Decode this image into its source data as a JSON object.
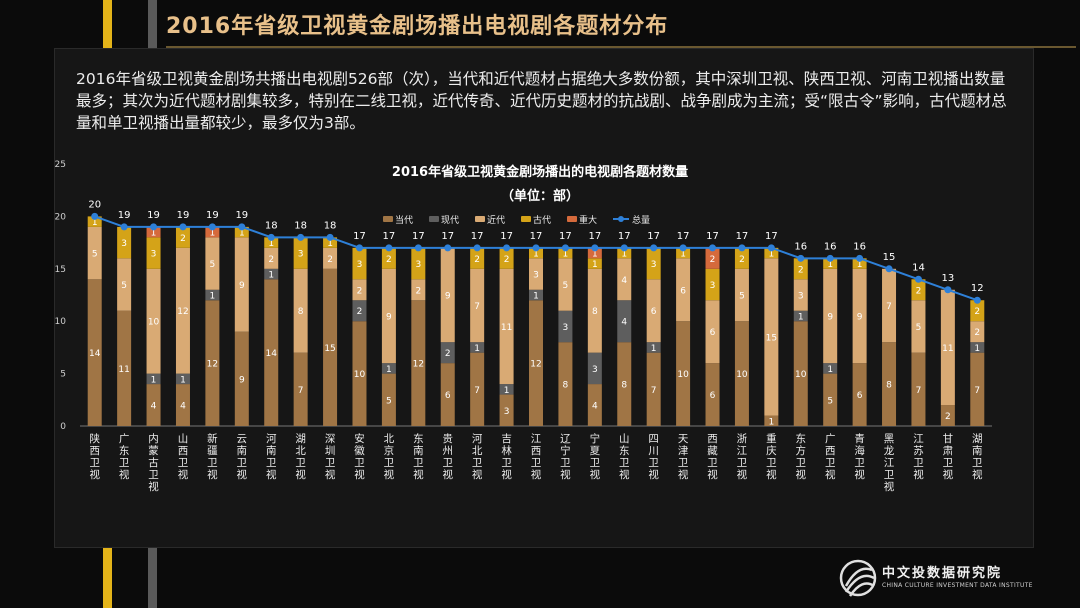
{
  "page": {
    "title": "2016年省级卫视黄金剧场播出电视剧各题材分布",
    "description": "2016年省级卫视黄金剧场共播出电视剧526部（次），当代和近代题材占据绝大多数份额，其中深圳卫视、陕西卫视、河南卫视播出数量最多；其次为近代题材剧集较多，特别在二线卫视，近代传奇、近代历史题材的抗战剧、战争剧成为主流；受“限古令”影响，古代题材总量和单卫视播出量都较少，最多仅为3部。",
    "logo_name": "中文投数据研究院",
    "logo_sub": "CHINA CULTURE INVESTMENT DATA INSTITUTE"
  },
  "chart_data": {
    "type": "bar",
    "title": "2016年省级卫视黄金剧场播出的电视剧各题材数量",
    "subtitle": "（单位：部）",
    "categories": [
      "陕西卫视",
      "广东卫视",
      "内蒙古卫视",
      "山西卫视",
      "新疆卫视",
      "云南卫视",
      "河南卫视",
      "湖北卫视",
      "深圳卫视",
      "安徽卫视",
      "北京卫视",
      "东南卫视",
      "贵州卫视",
      "河北卫视",
      "吉林卫视",
      "江西卫视",
      "辽宁卫视",
      "宁夏卫视",
      "山东卫视",
      "四川卫视",
      "天津卫视",
      "西藏卫视",
      "浙江卫视",
      "重庆卫视",
      "东方卫视",
      "广西卫视",
      "青海卫视",
      "黑龙江卫视",
      "江苏卫视",
      "甘肃卫视",
      "湖南卫视"
    ],
    "series": [
      {
        "name": "当代",
        "color": "#a07545",
        "values": [
          14,
          11,
          4,
          4,
          12,
          9,
          14,
          7,
          15,
          10,
          5,
          12,
          6,
          7,
          3,
          12,
          8,
          4,
          8,
          7,
          10,
          6,
          10,
          1,
          10,
          5,
          6,
          8,
          7,
          2,
          7
        ]
      },
      {
        "name": "现代",
        "color": "#5e5e5e",
        "values": [
          0,
          0,
          1,
          1,
          1,
          0,
          1,
          0,
          0,
          2,
          1,
          0,
          2,
          1,
          1,
          1,
          3,
          3,
          4,
          1,
          0,
          0,
          0,
          0,
          1,
          1,
          0,
          0,
          0,
          0,
          1
        ]
      },
      {
        "name": "近代",
        "color": "#d9aa74",
        "values": [
          5,
          5,
          10,
          12,
          5,
          9,
          2,
          8,
          2,
          2,
          9,
          2,
          9,
          7,
          11,
          3,
          5,
          8,
          4,
          6,
          6,
          6,
          5,
          15,
          3,
          9,
          9,
          7,
          5,
          11,
          2
        ]
      },
      {
        "name": "古代",
        "color": "#d4a318",
        "values": [
          1,
          3,
          3,
          2,
          0,
          1,
          1,
          3,
          1,
          3,
          2,
          3,
          0,
          2,
          2,
          1,
          1,
          1,
          1,
          3,
          1,
          3,
          2,
          1,
          2,
          1,
          1,
          0,
          2,
          0,
          2
        ]
      },
      {
        "name": "重大",
        "color": "#d56a3c",
        "values": [
          0,
          0,
          1,
          0,
          1,
          0,
          0,
          0,
          0,
          0,
          0,
          0,
          0,
          0,
          0,
          0,
          0,
          1,
          0,
          0,
          0,
          2,
          0,
          0,
          0,
          0,
          0,
          0,
          0,
          0,
          0
        ]
      }
    ],
    "total": {
      "name": "总量",
      "color": "#2e80d8",
      "values": [
        20,
        19,
        19,
        19,
        19,
        19,
        18,
        18,
        18,
        17,
        17,
        17,
        17,
        17,
        17,
        17,
        17,
        17,
        17,
        17,
        17,
        17,
        17,
        17,
        16,
        16,
        16,
        15,
        14,
        13,
        12
      ]
    },
    "ylim": [
      0,
      25
    ],
    "yticks": [
      0,
      5,
      10,
      15,
      20,
      25
    ],
    "grid": false,
    "legend_position": "top-center"
  }
}
